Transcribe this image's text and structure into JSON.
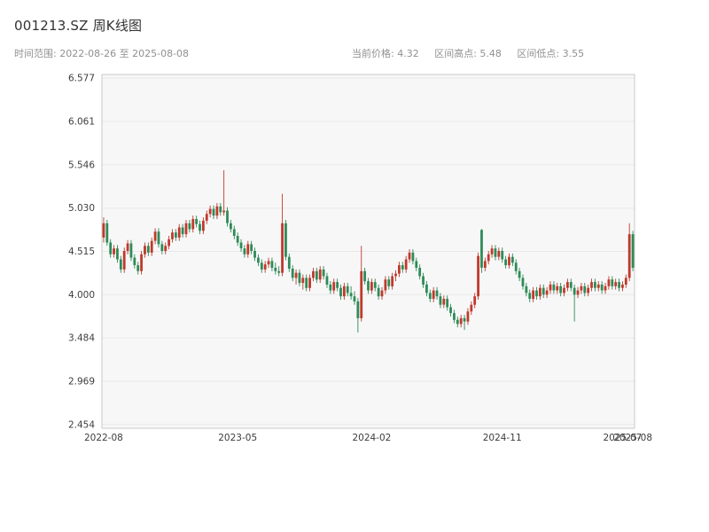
{
  "header": {
    "title": "001213.SZ 周K线图",
    "time_range": "时间范围: 2022-08-26 至 2025-08-08",
    "stats": {
      "current": "当前价格: 4.32",
      "high": "区间高点: 5.48",
      "low": "区间低点: 3.55"
    }
  },
  "chart_data": {
    "type": "candlestick",
    "symbol": "001213.SZ",
    "period": "weekly",
    "title": "001213.SZ 周K线图",
    "date_start": "2022-08-26",
    "date_end": "2025-08-08",
    "current_price": 4.32,
    "range_high": 5.48,
    "range_low": 3.55,
    "ylim": [
      2.41,
      6.62
    ],
    "grid": true,
    "legend": false,
    "style": {
      "up_color": "#c0392b",
      "down_color": "#2e8b57",
      "plot_bg": "#f7f7f8",
      "grid_color": "#e8e8ea",
      "border_color": "#c9c9c9"
    },
    "y_ticks": [
      "6.577",
      "6.061",
      "5.546",
      "5.030",
      "4.515",
      "4.000",
      "3.484",
      "2.969",
      "2.454"
    ],
    "y_tick_values": [
      6.577,
      6.061,
      5.546,
      5.03,
      4.515,
      4.0,
      3.484,
      2.969,
      2.454
    ],
    "x_ticks": [
      {
        "index": 0,
        "label": "2022-08"
      },
      {
        "index": 39,
        "label": "2023-05"
      },
      {
        "index": 78,
        "label": "2024-02"
      },
      {
        "index": 116,
        "label": "2024-11"
      },
      {
        "index": 151,
        "label": "2025-07"
      },
      {
        "index": 154,
        "label": "2025-08"
      }
    ],
    "candles": [
      [
        4.68,
        4.92,
        4.62,
        4.85
      ],
      [
        4.85,
        4.89,
        4.58,
        4.62
      ],
      [
        4.62,
        4.66,
        4.44,
        4.48
      ],
      [
        4.48,
        4.59,
        4.44,
        4.55
      ],
      [
        4.55,
        4.59,
        4.38,
        4.42
      ],
      [
        4.42,
        4.46,
        4.26,
        4.3
      ],
      [
        4.3,
        4.56,
        4.26,
        4.52
      ],
      [
        4.52,
        4.65,
        4.48,
        4.61
      ],
      [
        4.61,
        4.65,
        4.4,
        4.44
      ],
      [
        4.44,
        4.48,
        4.31,
        4.35
      ],
      [
        4.35,
        4.39,
        4.24,
        4.28
      ],
      [
        4.28,
        4.52,
        4.24,
        4.48
      ],
      [
        4.48,
        4.62,
        4.44,
        4.58
      ],
      [
        4.58,
        4.62,
        4.46,
        4.5
      ],
      [
        4.5,
        4.68,
        4.46,
        4.64
      ],
      [
        4.64,
        4.79,
        4.6,
        4.75
      ],
      [
        4.75,
        4.79,
        4.56,
        4.6
      ],
      [
        4.6,
        4.64,
        4.48,
        4.52
      ],
      [
        4.52,
        4.62,
        4.48,
        4.58
      ],
      [
        4.58,
        4.7,
        4.54,
        4.66
      ],
      [
        4.66,
        4.78,
        4.62,
        4.74
      ],
      [
        4.74,
        4.78,
        4.64,
        4.68
      ],
      [
        4.68,
        4.84,
        4.64,
        4.8
      ],
      [
        4.8,
        4.84,
        4.68,
        4.72
      ],
      [
        4.72,
        4.89,
        4.68,
        4.85
      ],
      [
        4.85,
        4.89,
        4.74,
        4.78
      ],
      [
        4.78,
        4.94,
        4.74,
        4.9
      ],
      [
        4.9,
        4.94,
        4.8,
        4.84
      ],
      [
        4.84,
        4.88,
        4.72,
        4.76
      ],
      [
        4.76,
        4.92,
        4.72,
        4.88
      ],
      [
        4.88,
        5.0,
        4.84,
        4.96
      ],
      [
        4.96,
        5.06,
        4.92,
        5.02
      ],
      [
        5.02,
        5.06,
        4.9,
        4.94
      ],
      [
        4.94,
        5.09,
        4.9,
        5.05
      ],
      [
        5.05,
        5.09,
        4.94,
        4.98
      ],
      [
        4.98,
        5.48,
        4.94,
        5.0
      ],
      [
        5.0,
        5.04,
        4.81,
        4.85
      ],
      [
        4.85,
        4.89,
        4.74,
        4.78
      ],
      [
        4.78,
        4.82,
        4.66,
        4.7
      ],
      [
        4.7,
        4.74,
        4.58,
        4.62
      ],
      [
        4.62,
        4.66,
        4.51,
        4.55
      ],
      [
        4.55,
        4.59,
        4.44,
        4.48
      ],
      [
        4.48,
        4.64,
        4.44,
        4.6
      ],
      [
        4.6,
        4.64,
        4.48,
        4.52
      ],
      [
        4.52,
        4.56,
        4.4,
        4.44
      ],
      [
        4.44,
        4.48,
        4.34,
        4.38
      ],
      [
        4.38,
        4.42,
        4.26,
        4.3
      ],
      [
        4.3,
        4.4,
        4.26,
        4.36
      ],
      [
        4.36,
        4.44,
        4.32,
        4.4
      ],
      [
        4.4,
        4.44,
        4.28,
        4.32
      ],
      [
        4.32,
        4.38,
        4.24,
        4.28
      ],
      [
        4.28,
        4.34,
        4.22,
        4.26
      ],
      [
        4.26,
        5.2,
        4.22,
        4.85
      ],
      [
        4.85,
        4.89,
        4.41,
        4.45
      ],
      [
        4.45,
        4.49,
        4.27,
        4.31
      ],
      [
        4.31,
        4.35,
        4.16,
        4.2
      ],
      [
        4.2,
        4.3,
        4.12,
        4.26
      ],
      [
        4.26,
        4.3,
        4.1,
        4.14
      ],
      [
        4.14,
        4.24,
        4.06,
        4.2
      ],
      [
        4.2,
        4.24,
        4.04,
        4.08
      ],
      [
        4.08,
        4.24,
        4.04,
        4.2
      ],
      [
        4.2,
        4.32,
        4.16,
        4.28
      ],
      [
        4.28,
        4.32,
        4.14,
        4.18
      ],
      [
        4.18,
        4.34,
        4.14,
        4.3
      ],
      [
        4.3,
        4.34,
        4.18,
        4.22
      ],
      [
        4.22,
        4.26,
        4.08,
        4.12
      ],
      [
        4.12,
        4.16,
        4.01,
        4.05
      ],
      [
        4.05,
        4.19,
        4.01,
        4.15
      ],
      [
        4.15,
        4.19,
        4.04,
        4.08
      ],
      [
        4.08,
        4.12,
        3.94,
        3.98
      ],
      [
        3.98,
        4.14,
        3.94,
        4.1
      ],
      [
        4.1,
        4.14,
        3.98,
        4.02
      ],
      [
        4.02,
        4.1,
        3.94,
        3.98
      ],
      [
        3.98,
        4.04,
        3.88,
        3.92
      ],
      [
        3.92,
        3.96,
        3.55,
        3.72
      ],
      [
        3.72,
        4.58,
        3.68,
        4.28
      ],
      [
        4.28,
        4.32,
        4.12,
        4.16
      ],
      [
        4.16,
        4.2,
        4.01,
        4.05
      ],
      [
        4.05,
        4.19,
        4.01,
        4.15
      ],
      [
        4.15,
        4.19,
        4.04,
        4.08
      ],
      [
        4.08,
        4.12,
        3.94,
        3.98
      ],
      [
        3.98,
        4.09,
        3.94,
        4.05
      ],
      [
        4.05,
        4.22,
        4.01,
        4.18
      ],
      [
        4.18,
        4.22,
        4.06,
        4.1
      ],
      [
        4.1,
        4.26,
        4.06,
        4.22
      ],
      [
        4.22,
        4.29,
        4.16,
        4.25
      ],
      [
        4.25,
        4.39,
        4.21,
        4.35
      ],
      [
        4.35,
        4.39,
        4.26,
        4.3
      ],
      [
        4.3,
        4.46,
        4.26,
        4.42
      ],
      [
        4.42,
        4.54,
        4.38,
        4.5
      ],
      [
        4.5,
        4.54,
        4.36,
        4.4
      ],
      [
        4.4,
        4.44,
        4.28,
        4.32
      ],
      [
        4.32,
        4.36,
        4.18,
        4.22
      ],
      [
        4.22,
        4.26,
        4.08,
        4.12
      ],
      [
        4.12,
        4.16,
        3.98,
        4.02
      ],
      [
        4.02,
        4.06,
        3.91,
        3.95
      ],
      [
        3.95,
        4.09,
        3.91,
        4.05
      ],
      [
        4.05,
        4.09,
        3.94,
        3.98
      ],
      [
        3.98,
        4.02,
        3.84,
        3.88
      ],
      [
        3.88,
        3.99,
        3.84,
        3.95
      ],
      [
        3.95,
        3.99,
        3.81,
        3.85
      ],
      [
        3.85,
        3.89,
        3.74,
        3.78
      ],
      [
        3.78,
        3.82,
        3.66,
        3.7
      ],
      [
        3.7,
        3.74,
        3.61,
        3.65
      ],
      [
        3.65,
        3.76,
        3.61,
        3.72
      ],
      [
        3.72,
        3.76,
        3.58,
        3.68
      ],
      [
        3.68,
        3.84,
        3.64,
        3.8
      ],
      [
        3.8,
        3.92,
        3.76,
        3.88
      ],
      [
        3.88,
        4.02,
        3.84,
        3.98
      ],
      [
        3.98,
        4.5,
        3.94,
        4.46
      ],
      [
        4.77,
        4.78,
        4.26,
        4.32
      ],
      [
        4.32,
        4.44,
        4.28,
        4.4
      ],
      [
        4.4,
        4.52,
        4.36,
        4.48
      ],
      [
        4.48,
        4.59,
        4.44,
        4.55
      ],
      [
        4.55,
        4.59,
        4.41,
        4.45
      ],
      [
        4.45,
        4.56,
        4.41,
        4.52
      ],
      [
        4.52,
        4.56,
        4.38,
        4.42
      ],
      [
        4.42,
        4.46,
        4.31,
        4.35
      ],
      [
        4.35,
        4.49,
        4.31,
        4.45
      ],
      [
        4.45,
        4.49,
        4.34,
        4.38
      ],
      [
        4.38,
        4.42,
        4.24,
        4.28
      ],
      [
        4.28,
        4.32,
        4.16,
        4.2
      ],
      [
        4.2,
        4.24,
        4.06,
        4.1
      ],
      [
        4.1,
        4.14,
        3.98,
        4.02
      ],
      [
        4.02,
        4.06,
        3.91,
        3.95
      ],
      [
        3.95,
        4.09,
        3.91,
        4.05
      ],
      [
        4.05,
        4.09,
        3.94,
        3.98
      ],
      [
        3.98,
        4.12,
        3.94,
        4.08
      ],
      [
        4.08,
        4.12,
        3.96,
        4.0
      ],
      [
        4.0,
        4.09,
        3.96,
        4.05
      ],
      [
        4.05,
        4.16,
        4.01,
        4.12
      ],
      [
        4.12,
        4.16,
        4.01,
        4.05
      ],
      [
        4.05,
        4.14,
        4.01,
        4.1
      ],
      [
        4.1,
        4.14,
        3.98,
        4.02
      ],
      [
        4.02,
        4.12,
        3.98,
        4.08
      ],
      [
        4.08,
        4.19,
        4.04,
        4.15
      ],
      [
        4.15,
        4.19,
        4.04,
        4.08
      ],
      [
        4.08,
        4.12,
        3.68,
        4.0
      ],
      [
        4.0,
        4.09,
        3.96,
        4.05
      ],
      [
        4.05,
        4.14,
        4.01,
        4.1
      ],
      [
        4.1,
        4.14,
        3.98,
        4.02
      ],
      [
        4.02,
        4.12,
        3.98,
        4.08
      ],
      [
        4.08,
        4.19,
        4.04,
        4.15
      ],
      [
        4.15,
        4.19,
        4.04,
        4.08
      ],
      [
        4.08,
        4.16,
        4.04,
        4.12
      ],
      [
        4.12,
        4.16,
        4.01,
        4.05
      ],
      [
        4.05,
        4.14,
        4.01,
        4.1
      ],
      [
        4.1,
        4.22,
        4.06,
        4.18
      ],
      [
        4.18,
        4.22,
        4.06,
        4.1
      ],
      [
        4.1,
        4.19,
        4.06,
        4.15
      ],
      [
        4.15,
        4.19,
        4.04,
        4.08
      ],
      [
        4.08,
        4.16,
        4.04,
        4.12
      ],
      [
        4.12,
        4.24,
        4.08,
        4.2
      ],
      [
        4.2,
        4.85,
        4.16,
        4.72
      ],
      [
        4.72,
        4.76,
        4.28,
        4.32
      ]
    ]
  }
}
